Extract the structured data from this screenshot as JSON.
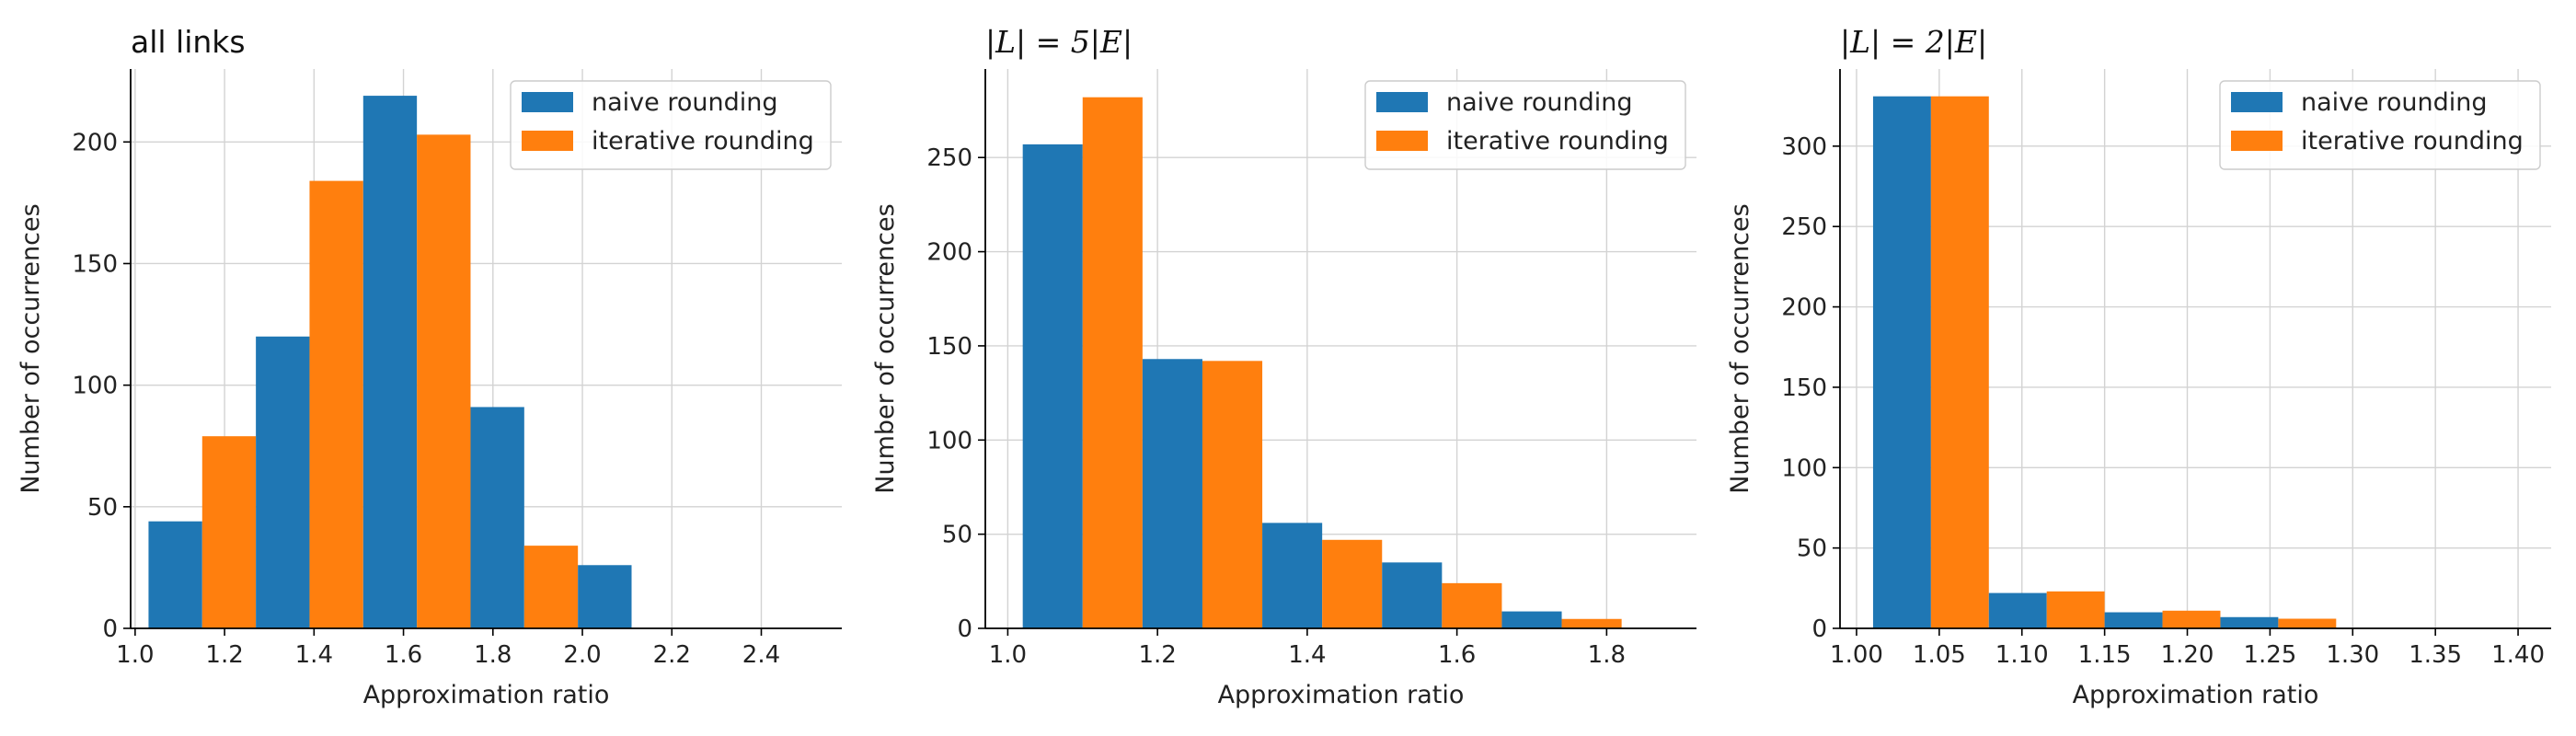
{
  "chart_data": [
    {
      "type": "bar",
      "title": "all links",
      "title_style": "text",
      "xlabel": "Approximation ratio",
      "ylabel": "Number of occurrences",
      "xlim": [
        0.99,
        2.58
      ],
      "ylim": [
        0,
        230
      ],
      "xticks": [
        1.0,
        1.2,
        1.4,
        1.6,
        1.8,
        2.0,
        2.2,
        2.4
      ],
      "xtick_labels": [
        "1.0",
        "1.2",
        "1.4",
        "1.6",
        "1.8",
        "2.0",
        "2.2",
        "2.4"
      ],
      "yticks": [
        0,
        50,
        100,
        150,
        200
      ],
      "ytick_labels": [
        "0",
        "50",
        "100",
        "150",
        "200"
      ],
      "bin_edges": [
        1.03,
        1.27,
        1.51,
        1.75,
        1.99,
        2.23,
        2.47
      ],
      "series": [
        {
          "name": "naive rounding",
          "color": "#1f77b4",
          "values": [
            44,
            120,
            219,
            91,
            26,
            0
          ]
        },
        {
          "name": "iterative rounding",
          "color": "#ff7f0e",
          "values": [
            79,
            184,
            203,
            34,
            0,
            0
          ]
        }
      ],
      "grid": true,
      "legend_position": "top-right"
    },
    {
      "type": "bar",
      "title": "|L| = 5|E|",
      "title_style": "math",
      "xlabel": "Approximation ratio",
      "ylabel": "Number of occurrences",
      "xlim": [
        0.97,
        1.92
      ],
      "ylim": [
        0,
        297
      ],
      "xticks": [
        1.0,
        1.2,
        1.4,
        1.6,
        1.8
      ],
      "xtick_labels": [
        "1.0",
        "1.2",
        "1.4",
        "1.6",
        "1.8"
      ],
      "yticks": [
        0,
        50,
        100,
        150,
        200,
        250
      ],
      "ytick_labels": [
        "0",
        "50",
        "100",
        "150",
        "200",
        "250"
      ],
      "bin_edges": [
        1.02,
        1.18,
        1.34,
        1.5,
        1.66,
        1.82
      ],
      "series": [
        {
          "name": "naive rounding",
          "color": "#1f77b4",
          "values": [
            257,
            143,
            56,
            35,
            9
          ]
        },
        {
          "name": "iterative rounding",
          "color": "#ff7f0e",
          "values": [
            282,
            142,
            47,
            24,
            5
          ]
        }
      ],
      "grid": true,
      "legend_position": "top-right"
    },
    {
      "type": "bar",
      "title": "|L| = 2|E|",
      "title_style": "math",
      "xlabel": "Approximation ratio",
      "ylabel": "Number of occurrences",
      "xlim": [
        0.99,
        1.42
      ],
      "ylim": [
        0,
        348
      ],
      "xticks": [
        1.0,
        1.05,
        1.1,
        1.15,
        1.2,
        1.25,
        1.3,
        1.35,
        1.4
      ],
      "xtick_labels": [
        "1.00",
        "1.05",
        "1.10",
        "1.15",
        "1.20",
        "1.25",
        "1.30",
        "1.35",
        "1.40"
      ],
      "yticks": [
        0,
        50,
        100,
        150,
        200,
        250,
        300
      ],
      "ytick_labels": [
        "0",
        "50",
        "100",
        "150",
        "200",
        "250",
        "300"
      ],
      "bin_edges": [
        1.01,
        1.08,
        1.15,
        1.22,
        1.29,
        1.36,
        1.43
      ],
      "series": [
        {
          "name": "naive rounding",
          "color": "#1f77b4",
          "values": [
            331,
            22,
            10,
            7,
            0,
            0
          ]
        },
        {
          "name": "iterative rounding",
          "color": "#ff7f0e",
          "values": [
            331,
            23,
            11,
            6,
            0,
            0
          ]
        }
      ],
      "grid": true,
      "legend_position": "top-right"
    }
  ]
}
